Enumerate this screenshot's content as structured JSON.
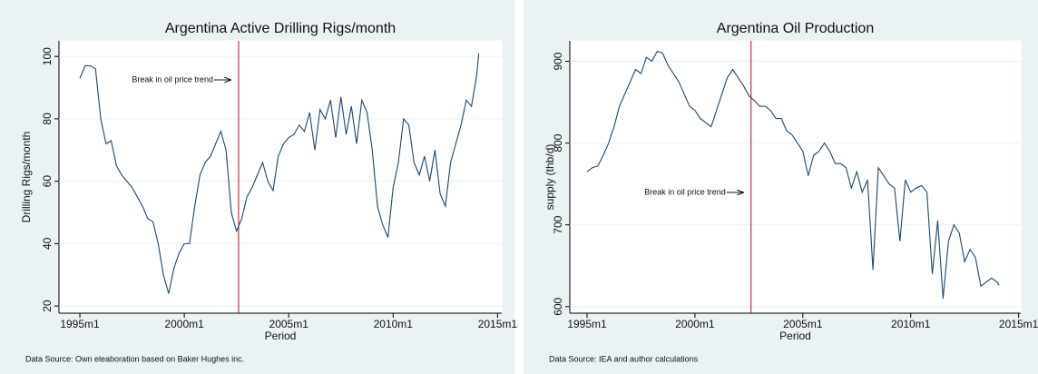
{
  "chart_data": [
    {
      "type": "line",
      "title": "Argentina Active Drilling Rigs/month",
      "x_label": "Period",
      "y_label": "Drilling Rigs/month",
      "source": "Data Source: Own eleaboration based on Baker Hughes inc.",
      "annotation": "Break in oil price trend",
      "vline": 2002.6,
      "vline_color": "#b0102a",
      "xlim": [
        1994,
        2015.2
      ],
      "ylim": [
        17.7,
        105
      ],
      "xticks": [
        {
          "value": 1995,
          "label": "1995m1"
        },
        {
          "value": 2000,
          "label": "2000m1"
        },
        {
          "value": 2005,
          "label": "2005m1"
        },
        {
          "value": 2010,
          "label": "2010m1"
        },
        {
          "value": 2015,
          "label": "2015m1"
        }
      ],
      "yticks": [
        20,
        40,
        60,
        80,
        100
      ],
      "grid": true,
      "series": [
        {
          "color": "#1a476f",
          "x": [
            1995,
            1995.25,
            1995.5,
            1995.75,
            1996,
            1996.25,
            1996.5,
            1996.75,
            1997,
            1997.25,
            1997.5,
            1997.75,
            1998,
            1998.25,
            1998.5,
            1998.75,
            1999,
            1999.25,
            1999.5,
            1999.75,
            2000,
            2000.25,
            2000.5,
            2000.75,
            2001,
            2001.25,
            2001.5,
            2001.75,
            2002,
            2002.25,
            2002.5,
            2002.75,
            2003,
            2003.25,
            2003.5,
            2003.75,
            2004,
            2004.25,
            2004.5,
            2004.75,
            2005,
            2005.25,
            2005.5,
            2005.75,
            2006,
            2006.25,
            2006.5,
            2006.75,
            2007,
            2007.25,
            2007.5,
            2007.75,
            2008,
            2008.25,
            2008.5,
            2008.75,
            2009,
            2009.25,
            2009.5,
            2009.75,
            2010,
            2010.25,
            2010.5,
            2010.75,
            2011,
            2011.25,
            2011.5,
            2011.75,
            2012,
            2012.25,
            2012.5,
            2012.75,
            2013,
            2013.25,
            2013.5,
            2013.75,
            2014,
            2014.1
          ],
          "values": [
            93,
            97,
            97,
            96,
            80,
            72,
            73,
            65,
            62,
            60,
            58,
            55,
            52,
            48,
            47,
            40,
            30,
            24,
            32,
            37,
            40,
            40,
            52,
            62,
            66,
            68,
            72,
            76,
            70,
            50,
            44,
            48,
            55,
            58,
            62,
            66,
            60,
            57,
            68,
            72,
            74,
            75,
            78,
            76,
            82,
            70,
            83,
            80,
            86,
            74,
            87,
            75,
            84,
            72,
            86,
            82,
            70,
            52,
            46,
            42,
            58,
            66,
            80,
            78,
            66,
            62,
            68,
            60,
            70,
            56,
            52,
            66,
            72,
            78,
            86,
            84,
            94,
            101
          ]
        }
      ]
    },
    {
      "type": "line",
      "title": "Argentina Oil Production",
      "x_label": "Period",
      "y_label": "supply (thb/d)",
      "source": "Data Source: IEA and author calculations",
      "annotation": "Break in oil price trend",
      "vline": 2002.6,
      "vline_color": "#b0102a",
      "xlim": [
        1994.2,
        2015.1
      ],
      "ylim": [
        592,
        925
      ],
      "xticks": [
        {
          "value": 1995,
          "label": "1995m1"
        },
        {
          "value": 2000,
          "label": "2000m1"
        },
        {
          "value": 2005,
          "label": "2005m1"
        },
        {
          "value": 2010,
          "label": "2010m1"
        },
        {
          "value": 2015,
          "label": "2015m1"
        }
      ],
      "yticks": [
        600,
        700,
        800,
        900
      ],
      "grid": true,
      "series": [
        {
          "color": "#1a476f",
          "x": [
            1995,
            1995.25,
            1995.5,
            1995.75,
            1996,
            1996.25,
            1996.5,
            1996.75,
            1997,
            1997.25,
            1997.5,
            1997.75,
            1998,
            1998.25,
            1998.5,
            1998.75,
            1999,
            1999.25,
            1999.5,
            1999.75,
            2000,
            2000.25,
            2000.5,
            2000.75,
            2001,
            2001.25,
            2001.5,
            2001.75,
            2002,
            2002.25,
            2002.5,
            2002.75,
            2003,
            2003.25,
            2003.5,
            2003.75,
            2004,
            2004.25,
            2004.5,
            2004.75,
            2005,
            2005.25,
            2005.5,
            2005.75,
            2006,
            2006.25,
            2006.5,
            2006.75,
            2007,
            2007.25,
            2007.5,
            2007.75,
            2008,
            2008.25,
            2008.5,
            2008.75,
            2009,
            2009.25,
            2009.5,
            2009.75,
            2010,
            2010.25,
            2010.5,
            2010.75,
            2011,
            2011.25,
            2011.5,
            2011.75,
            2012,
            2012.25,
            2012.5,
            2012.75,
            2013,
            2013.25,
            2013.5,
            2013.75,
            2014,
            2014.1
          ],
          "values": [
            765,
            770,
            772,
            785,
            800,
            820,
            845,
            860,
            875,
            890,
            885,
            905,
            900,
            912,
            910,
            895,
            885,
            875,
            860,
            845,
            840,
            830,
            825,
            820,
            840,
            860,
            880,
            890,
            880,
            870,
            858,
            852,
            845,
            845,
            840,
            830,
            830,
            815,
            810,
            800,
            790,
            760,
            785,
            790,
            800,
            790,
            775,
            775,
            770,
            745,
            765,
            740,
            755,
            645,
            770,
            760,
            750,
            745,
            680,
            755,
            740,
            745,
            748,
            740,
            640,
            705,
            610,
            680,
            700,
            690,
            655,
            670,
            660,
            625,
            630,
            635,
            630,
            626
          ]
        }
      ]
    }
  ]
}
